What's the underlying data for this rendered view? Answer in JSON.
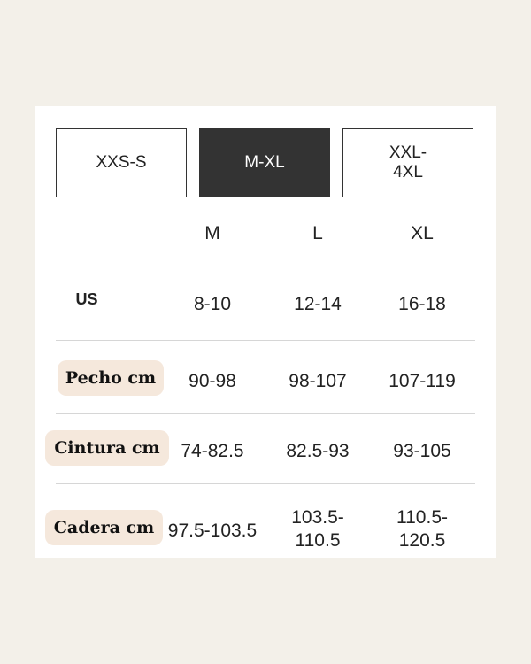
{
  "tabs": [
    {
      "label": "XXS-S",
      "active": false
    },
    {
      "label": "M-XL",
      "active": true
    },
    {
      "label": "XXL-\n4XL",
      "active": false
    }
  ],
  "columns": [
    "M",
    "L",
    "XL"
  ],
  "rows": [
    {
      "label": "US",
      "values": [
        "8-10",
        "12-14",
        "16-18"
      ]
    },
    {
      "label": "Pecho cm",
      "values": [
        "90-98",
        "98-107",
        "107-119"
      ]
    },
    {
      "label": "Cintura cm",
      "values": [
        "74-82.5",
        "82.5-93",
        "93-105"
      ]
    },
    {
      "label": "Cadera cm",
      "values": [
        "97.5-103.5",
        "103.5-\n110.5",
        "110.5-\n120.5"
      ]
    }
  ],
  "colors": {
    "background": "#f3f0e9",
    "active_tab": "#333333",
    "label_pill": "#f5e8dc"
  }
}
